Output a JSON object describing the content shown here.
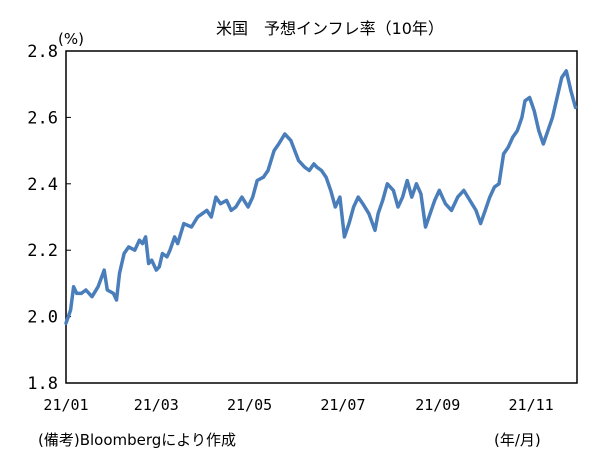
{
  "chart_data": {
    "type": "line",
    "title": "米国　予想インフレ率（10年）",
    "y_unit_label": "(%)",
    "x_unit_label": "(年/月)",
    "source_note": "(備考)Bloombergにより作成",
    "ylim": [
      1.8,
      2.8
    ],
    "y_ticks": [
      "2.8",
      "2.6",
      "2.4",
      "2.2",
      "2.0",
      "1.8"
    ],
    "x_ticks": [
      "21/01",
      "21/03",
      "21/05",
      "21/07",
      "21/09",
      "21/11"
    ],
    "line_color": "#4a7ebb",
    "series": [
      {
        "x": [
          "2021-01-01",
          "2021-01-04",
          "2021-01-06",
          "2021-01-08",
          "2021-01-11",
          "2021-01-14",
          "2021-01-18",
          "2021-01-22",
          "2021-01-26",
          "2021-01-28",
          "2021-02-01",
          "2021-02-03",
          "2021-02-05",
          "2021-02-08",
          "2021-02-11",
          "2021-02-15",
          "2021-02-18",
          "2021-02-20",
          "2021-02-22",
          "2021-02-24",
          "2021-02-26",
          "2021-03-01",
          "2021-03-03",
          "2021-03-05",
          "2021-03-08",
          "2021-03-10",
          "2021-03-13",
          "2021-03-15",
          "2021-03-19",
          "2021-03-24",
          "2021-03-28",
          "2021-03-31",
          "2021-04-03",
          "2021-04-06",
          "2021-04-09",
          "2021-04-12",
          "2021-04-16",
          "2021-04-19",
          "2021-04-22",
          "2021-04-26",
          "2021-04-30",
          "2021-05-03",
          "2021-05-06",
          "2021-05-10",
          "2021-05-13",
          "2021-05-17",
          "2021-05-20",
          "2021-05-24",
          "2021-05-28",
          "2021-06-02",
          "2021-06-06",
          "2021-06-09",
          "2021-06-12",
          "2021-06-14",
          "2021-06-17",
          "2021-06-20",
          "2021-06-23",
          "2021-06-26",
          "2021-06-29",
          "2021-07-02",
          "2021-07-05",
          "2021-07-08",
          "2021-07-11",
          "2021-07-14",
          "2021-07-18",
          "2021-07-22",
          "2021-07-24",
          "2021-07-27",
          "2021-07-30",
          "2021-08-03",
          "2021-08-06",
          "2021-08-09",
          "2021-08-12",
          "2021-08-15",
          "2021-08-18",
          "2021-08-21",
          "2021-08-24",
          "2021-08-27",
          "2021-08-30",
          "2021-09-02",
          "2021-09-06",
          "2021-09-10",
          "2021-09-14",
          "2021-09-18",
          "2021-09-22",
          "2021-09-26",
          "2021-09-29",
          "2021-10-02",
          "2021-10-05",
          "2021-10-08",
          "2021-10-11",
          "2021-10-14",
          "2021-10-17",
          "2021-10-20",
          "2021-10-23",
          "2021-10-26",
          "2021-10-28",
          "2021-10-31",
          "2021-11-03",
          "2021-11-06",
          "2021-11-09",
          "2021-11-12",
          "2021-11-15",
          "2021-11-18",
          "2021-11-21",
          "2021-11-24",
          "2021-11-27",
          "2021-11-30"
        ],
        "y": [
          1.98,
          2.02,
          2.09,
          2.07,
          2.07,
          2.08,
          2.06,
          2.09,
          2.14,
          2.08,
          2.07,
          2.05,
          2.13,
          2.19,
          2.21,
          2.2,
          2.23,
          2.22,
          2.24,
          2.16,
          2.17,
          2.14,
          2.15,
          2.19,
          2.18,
          2.2,
          2.24,
          2.22,
          2.28,
          2.27,
          2.3,
          2.31,
          2.32,
          2.3,
          2.36,
          2.34,
          2.35,
          2.32,
          2.33,
          2.36,
          2.33,
          2.36,
          2.41,
          2.42,
          2.44,
          2.5,
          2.52,
          2.55,
          2.53,
          2.47,
          2.45,
          2.44,
          2.46,
          2.45,
          2.44,
          2.42,
          2.38,
          2.33,
          2.36,
          2.24,
          2.28,
          2.33,
          2.36,
          2.34,
          2.31,
          2.26,
          2.31,
          2.35,
          2.4,
          2.38,
          2.33,
          2.36,
          2.41,
          2.36,
          2.4,
          2.37,
          2.27,
          2.31,
          2.35,
          2.38,
          2.34,
          2.32,
          2.36,
          2.38,
          2.35,
          2.32,
          2.28,
          2.32,
          2.36,
          2.39,
          2.4,
          2.49,
          2.51,
          2.54,
          2.56,
          2.6,
          2.65,
          2.66,
          2.62,
          2.56,
          2.52,
          2.56,
          2.6,
          2.66,
          2.72,
          2.74,
          2.68,
          2.63
        ]
      }
    ]
  }
}
